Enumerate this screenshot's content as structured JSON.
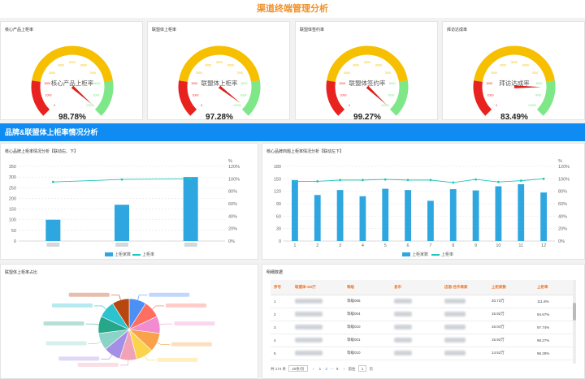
{
  "header": {
    "title": "渠道终端管理分析"
  },
  "gauges": [
    {
      "title": "核心产品上柜率",
      "label": "核心产品上柜率",
      "value": "98.78%",
      "pct": 98.78
    },
    {
      "title": "联盟体上柜率",
      "label": "联盟体上柜率",
      "value": "97.28%",
      "pct": 97.28
    },
    {
      "title": "联盟体签约率",
      "label": "联盟体签约率",
      "value": "99.27%",
      "pct": 99.27
    },
    {
      "title": "拜访达成率",
      "label": "拜访达成率",
      "value": "83.49%",
      "pct": 83.49
    }
  ],
  "gauge_ticks": [
    "0",
    "1000",
    "2000",
    "3000",
    "4000",
    "5000",
    "6000",
    "7000",
    "8000",
    "9000",
    "10000"
  ],
  "section": {
    "title": "品牌&联盟体上柜率情况分析"
  },
  "colors": {
    "accent": "#0f8cf3",
    "title_orange": "#f0912a",
    "bar": "#2ea6df",
    "line": "#21c4b9",
    "gauge_red": "#e8221f",
    "gauge_yellow": "#f6c000",
    "gauge_green": "#7ee787"
  },
  "charts": {
    "left_title": "核心品牌上柜率情况分析【联动右、下】",
    "right_title": "核心品牌商题上柜率情况分析【联动左下】",
    "legend_bar": "上柜家数",
    "legend_line": "上柜率",
    "pct_unit": "%"
  },
  "chart_data": [
    {
      "type": "bar",
      "title": "核心品牌上柜率情况分析【联动右、下】",
      "categories": [
        "",
        "",
        ""
      ],
      "series": [
        {
          "name": "上柜家数",
          "type": "bar",
          "values": [
            100,
            170,
            300
          ]
        },
        {
          "name": "上柜率",
          "type": "line",
          "axis": "right",
          "values": [
            95,
            99,
            100
          ]
        }
      ],
      "ylim": [
        0,
        350
      ],
      "y_ticks": [
        "0",
        "50",
        "100",
        "150",
        "200",
        "250",
        "300",
        "350"
      ],
      "y2lim": [
        0,
        120
      ],
      "y2_ticks": [
        "0%",
        "20%",
        "40%",
        "60%",
        "80%",
        "100%",
        "120%"
      ]
    },
    {
      "type": "bar",
      "title": "核心品牌商题上柜率情况分析【联动左下】",
      "categories": [
        "1",
        "2",
        "3",
        "4",
        "5",
        "6",
        "7",
        "8",
        "9",
        "10",
        "11",
        "12"
      ],
      "series": [
        {
          "name": "上柜家数",
          "type": "bar",
          "values": [
            147,
            111,
            123,
            108,
            126,
            123,
            97,
            125,
            122,
            132,
            137,
            117
          ]
        },
        {
          "name": "上柜率",
          "type": "line",
          "axis": "right",
          "values": [
            96,
            96,
            98,
            98,
            99,
            98,
            98,
            94,
            99,
            95,
            97,
            100
          ]
        }
      ],
      "ylim": [
        0,
        180
      ],
      "y_ticks": [
        "0",
        "30",
        "60",
        "90",
        "120",
        "150",
        "180"
      ],
      "y2lim": [
        0,
        120
      ],
      "y2_ticks": [
        "0%",
        "20%",
        "40%",
        "60%",
        "80%",
        "100%",
        "120%"
      ]
    },
    {
      "type": "pie",
      "title": "联盟体上柜率占比",
      "slices": [
        {
          "value": 9,
          "color": "#4c8ff5"
        },
        {
          "value": 9,
          "color": "#ff6f61"
        },
        {
          "value": 9,
          "color": "#f38bd0"
        },
        {
          "value": 10,
          "color": "#f9a24a"
        },
        {
          "value": 9,
          "color": "#fbd34d"
        },
        {
          "value": 9,
          "color": "#f2a2b6"
        },
        {
          "value": 9,
          "color": "#a58fe6"
        },
        {
          "value": 9,
          "color": "#8bd3c7"
        },
        {
          "value": 9,
          "color": "#27a78a"
        },
        {
          "value": 9,
          "color": "#2cc3cf"
        },
        {
          "value": 9,
          "color": "#b7460f"
        }
      ]
    }
  ],
  "pie": {
    "title": "联盟体上柜率占比"
  },
  "table": {
    "title": "明细数据",
    "headers": [
      "序号",
      "联盟体-SD厅",
      "等级",
      "县市",
      "店面-合作商家",
      "上柜家数",
      "上柜率"
    ],
    "rows": [
      {
        "no": "1",
        "level": "等级005",
        "count": "20.73万",
        "rate": "111.8%"
      },
      {
        "no": "2",
        "level": "等级004",
        "count": "15.92万",
        "rate": "94.67%"
      },
      {
        "no": "3",
        "level": "等级010",
        "count": "16.04万",
        "rate": "97.74%"
      },
      {
        "no": "4",
        "level": "等级001",
        "count": "15.92万",
        "rate": "98.27%"
      },
      {
        "no": "5",
        "level": "等级010",
        "count": "14.52万",
        "rate": "96.29%"
      }
    ]
  },
  "pager": {
    "total": "共 174 条",
    "page_size": "20条/页",
    "prev": "‹",
    "page1": "1",
    "page2": "2",
    "ellipsis": "···",
    "page9": "9",
    "next": "›",
    "goto": "前往",
    "page_input": "1",
    "page_unit": "页"
  }
}
